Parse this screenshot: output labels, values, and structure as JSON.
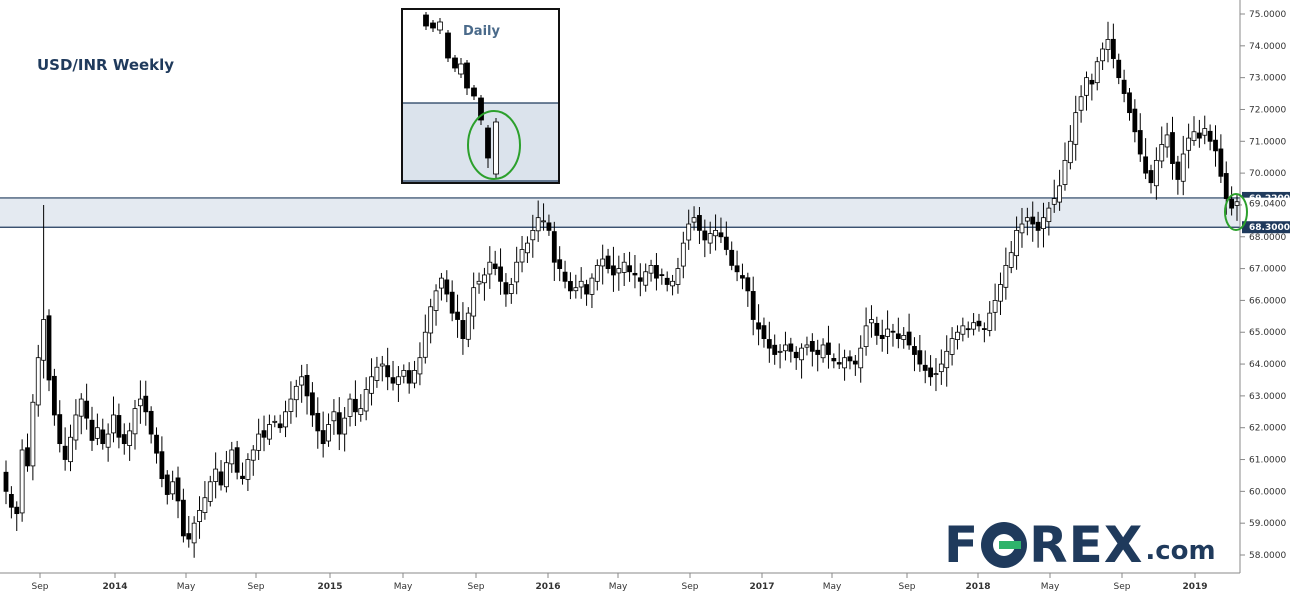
{
  "title": "USD/INR Weekly",
  "inset_label": "Daily",
  "logo": {
    "text_left": "F",
    "text_right": "REX",
    "suffix": ".com"
  },
  "colors": {
    "candle": "#000000",
    "zone_fill": "#dbe3ec",
    "zone_line": "#1f3a5c",
    "tag": "#1f3a5c",
    "circle": "#2ca02c"
  },
  "chart_data": {
    "type": "candlestick",
    "title": "USD/INR Weekly",
    "y_axis": {
      "range": [
        57.5,
        75.3
      ],
      "position": "right",
      "ticks": [
        "75.0000",
        "74.0000",
        "73.0000",
        "72.0000",
        "71.0000",
        "70.0000",
        "69.0000",
        "68.0000",
        "67.0000",
        "66.0000",
        "65.0000",
        "64.0000",
        "63.0000",
        "62.0000",
        "61.0000",
        "60.0000",
        "59.0000",
        "58.0000"
      ]
    },
    "x_axis": {
      "labels": [
        {
          "text": "Sep",
          "year": false
        },
        {
          "text": "2014",
          "year": true
        },
        {
          "text": "May",
          "year": false
        },
        {
          "text": "Sep",
          "year": false
        },
        {
          "text": "2015",
          "year": true
        },
        {
          "text": "May",
          "year": false
        },
        {
          "text": "Sep",
          "year": false
        },
        {
          "text": "2016",
          "year": true
        },
        {
          "text": "May",
          "year": false
        },
        {
          "text": "Sep",
          "year": false
        },
        {
          "text": "2017",
          "year": true
        },
        {
          "text": "May",
          "year": false
        },
        {
          "text": "Sep",
          "year": false
        },
        {
          "text": "2018",
          "year": true
        },
        {
          "text": "May",
          "year": false
        },
        {
          "text": "Sep",
          "year": false
        },
        {
          "text": "2019",
          "year": true
        }
      ]
    },
    "price_tags": [
      "69.2200",
      "68.3000",
      "69.0400"
    ],
    "support_zone": [
      68.3,
      69.22
    ],
    "series_close": [
      60.0,
      59.5,
      59.3,
      61.3,
      60.8,
      62.8,
      64.2,
      65.4,
      63.5,
      62.4,
      61.5,
      61.0,
      61.7,
      62.4,
      62.9,
      62.3,
      61.6,
      62.0,
      61.5,
      61.8,
      62.4,
      61.7,
      61.5,
      61.9,
      62.6,
      62.9,
      62.5,
      61.8,
      61.2,
      60.4,
      59.9,
      60.3,
      59.7,
      58.6,
      58.5,
      59.0,
      59.4,
      59.8,
      60.3,
      60.7,
      60.2,
      60.9,
      61.3,
      60.6,
      60.4,
      61.0,
      61.3,
      61.8,
      61.7,
      62.1,
      62.2,
      62.0,
      62.5,
      62.9,
      63.3,
      63.6,
      63.0,
      62.4,
      61.9,
      61.5,
      62.1,
      62.5,
      61.8,
      62.3,
      62.9,
      62.5,
      62.6,
      63.2,
      63.6,
      63.9,
      64.0,
      63.6,
      63.4,
      63.6,
      63.8,
      63.4,
      63.8,
      64.2,
      65.0,
      65.8,
      66.3,
      66.7,
      66.2,
      65.6,
      65.4,
      64.8,
      65.6,
      66.4,
      66.6,
      66.8,
      67.2,
      67.0,
      66.6,
      66.2,
      66.5,
      67.2,
      67.6,
      67.8,
      68.2,
      68.6,
      68.5,
      68.2,
      67.2,
      67.0,
      66.6,
      66.3,
      66.4,
      66.6,
      66.2,
      66.7,
      67.1,
      67.3,
      67.0,
      66.8,
      67.0,
      67.2,
      66.9,
      66.8,
      66.6,
      66.9,
      67.1,
      66.7,
      66.8,
      66.5,
      66.6,
      67.0,
      67.8,
      68.4,
      68.6,
      68.2,
      67.9,
      68.1,
      68.2,
      68.0,
      67.6,
      67.1,
      66.9,
      66.7,
      66.3,
      65.4,
      65.1,
      64.8,
      64.5,
      64.3,
      64.4,
      64.6,
      64.4,
      64.2,
      64.5,
      64.6,
      64.4,
      64.3,
      64.6,
      64.3,
      64.1,
      64.0,
      64.2,
      64.1,
      64.0,
      64.5,
      65.2,
      65.4,
      64.9,
      64.8,
      65.1,
      65.0,
      64.8,
      64.9,
      64.6,
      64.3,
      64.0,
      63.8,
      63.6,
      63.7,
      64.0,
      64.4,
      64.8,
      65.0,
      65.2,
      65.1,
      65.3,
      65.2,
      65.1,
      65.6,
      66.0,
      66.5,
      67.1,
      67.5,
      68.2,
      68.4,
      68.6,
      68.4,
      68.2,
      68.6,
      68.9,
      69.2,
      69.6,
      70.4,
      71.0,
      71.9,
      72.4,
      73.0,
      72.8,
      73.5,
      73.9,
      74.2,
      73.6,
      73.0,
      72.5,
      71.9,
      71.3,
      70.6,
      70.0,
      69.7,
      70.4,
      70.9,
      71.2,
      70.3,
      69.8,
      70.6,
      71.1,
      71.3,
      71.1,
      71.4,
      71.0,
      70.7,
      69.9,
      69.2,
      68.9,
      69.1
    ]
  }
}
